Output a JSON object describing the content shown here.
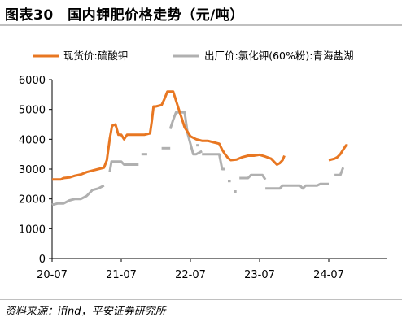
{
  "figure": {
    "title": "图表30　国内钾肥价格走势（元/吨）",
    "source": "资料来源：ifind，平安证券研究所"
  },
  "chart_data": {
    "type": "line",
    "title": "",
    "xlabel": "",
    "ylabel": "",
    "ylim": [
      0,
      6000
    ],
    "yticks": [
      0,
      1000,
      2000,
      3000,
      4000,
      5000,
      6000
    ],
    "xtick_labels": [
      "20-07",
      "21-07",
      "22-07",
      "23-07",
      "24-07"
    ],
    "x_unit": "months since 2020-07",
    "xlim": [
      0,
      53
    ],
    "legend_position": "top",
    "grid": false,
    "series": [
      {
        "name": "现货价:硫酸钾",
        "color": "#E87722",
        "points": [
          [
            0,
            2650
          ],
          [
            1.5,
            2650
          ],
          [
            2,
            2700
          ],
          [
            3,
            2720
          ],
          [
            4,
            2780
          ],
          [
            5,
            2820
          ],
          [
            6,
            2900
          ],
          [
            7,
            2950
          ],
          [
            8,
            3000
          ],
          [
            9,
            3050
          ],
          [
            9.5,
            3300
          ],
          [
            10,
            4000
          ],
          [
            10.4,
            4450
          ],
          [
            11,
            4500
          ],
          [
            11.5,
            4150
          ],
          [
            12,
            4150
          ],
          [
            12.5,
            4000
          ],
          [
            13,
            4150
          ],
          [
            14,
            4150
          ],
          [
            15,
            4150
          ],
          [
            16,
            4150
          ],
          [
            17,
            4200
          ],
          [
            17.3,
            4600
          ],
          [
            17.6,
            5100
          ],
          [
            18,
            5100
          ],
          [
            19,
            5150
          ],
          [
            19.5,
            5350
          ],
          [
            20,
            5600
          ],
          [
            21,
            5600
          ],
          [
            21.5,
            5300
          ],
          [
            22,
            5000
          ],
          [
            22.5,
            4700
          ],
          [
            23,
            4400
          ],
          [
            23.5,
            4250
          ],
          [
            24,
            4100
          ],
          [
            25,
            4000
          ],
          [
            26,
            3950
          ],
          [
            27,
            3950
          ],
          [
            28,
            3900
          ],
          [
            29,
            3850
          ],
          [
            29.5,
            3650
          ],
          [
            30,
            3500
          ],
          [
            30.5,
            3380
          ],
          [
            31,
            3300
          ],
          [
            32,
            3320
          ],
          [
            33,
            3400
          ],
          [
            34,
            3450
          ],
          [
            35,
            3450
          ],
          [
            36,
            3480
          ],
          [
            37,
            3420
          ],
          [
            38,
            3350
          ],
          [
            38.5,
            3250
          ],
          [
            39,
            3150
          ],
          [
            39.5,
            3200
          ],
          [
            40,
            3300
          ],
          [
            40.3,
            3450
          ]
        ],
        "segment2": [
          [
            48,
            3300
          ],
          [
            49,
            3350
          ],
          [
            49.5,
            3400
          ],
          [
            50,
            3500
          ],
          [
            50.5,
            3650
          ],
          [
            51,
            3800
          ],
          [
            51.3,
            3800
          ]
        ]
      },
      {
        "name": "出厂价:氯化钾(60%粉):青海盐湖",
        "color": "#B0B0B0",
        "segments": [
          [
            [
              0,
              1800
            ],
            [
              1,
              1850
            ],
            [
              2,
              1850
            ],
            [
              3,
              1950
            ],
            [
              4,
              2000
            ],
            [
              5,
              2000
            ],
            [
              6,
              2100
            ],
            [
              7,
              2300
            ],
            [
              8,
              2350
            ],
            [
              9,
              2450
            ]
          ],
          [
            [
              10,
              2900
            ],
            [
              10.3,
              3250
            ],
            [
              12,
              3250
            ],
            [
              12.5,
              3150
            ],
            [
              15,
              3150
            ]
          ],
          [
            [
              15.5,
              3500
            ],
            [
              16.5,
              3500
            ]
          ],
          [
            [
              19,
              3700
            ],
            [
              20.5,
              3700
            ]
          ],
          [
            [
              20.5,
              4350
            ],
            [
              21,
              4650
            ],
            [
              21.5,
              4900
            ],
            [
              23,
              4900
            ],
            [
              23.5,
              4200
            ],
            [
              24.5,
              3500
            ],
            [
              25,
              3500
            ],
            [
              26,
              3600
            ]
          ],
          [
            [
              25,
              3800
            ],
            [
              25.5,
              3800
            ]
          ],
          [
            [
              26,
              3500
            ],
            [
              29,
              3500
            ],
            [
              29.5,
              3000
            ],
            [
              30,
              3000
            ]
          ],
          [
            [
              30.5,
              2600
            ],
            [
              31,
              2600
            ]
          ],
          [
            [
              31.5,
              2250
            ],
            [
              32,
              2250
            ]
          ],
          [
            [
              32.5,
              2700
            ],
            [
              34,
              2700
            ],
            [
              34.5,
              2800
            ],
            [
              36.5,
              2800
            ],
            [
              37,
              2650
            ]
          ],
          [
            [
              37,
              2350
            ],
            [
              39.5,
              2350
            ],
            [
              40,
              2450
            ],
            [
              43,
              2450
            ],
            [
              43.5,
              2350
            ],
            [
              44,
              2450
            ],
            [
              46,
              2450
            ],
            [
              46.5,
              2500
            ],
            [
              48,
              2500
            ]
          ],
          [
            [
              49,
              2800
            ],
            [
              50,
              2800
            ],
            [
              50.5,
              3050
            ]
          ]
        ]
      }
    ]
  }
}
